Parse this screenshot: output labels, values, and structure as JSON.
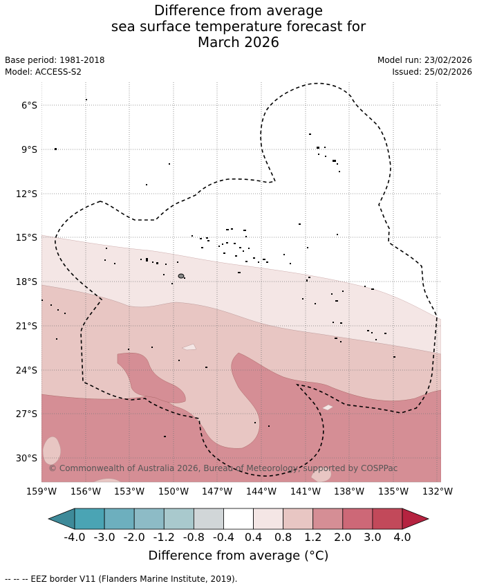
{
  "title": [
    "Difference from average",
    "sea surface temperature forecast for",
    "March 2026"
  ],
  "meta_left": [
    "Base period: 1981-2018",
    "Model: ACCESS-S2"
  ],
  "meta_right": [
    "Model run: 23/02/2026",
    "Issued: 25/02/2026"
  ],
  "copyright": "© Commonwealth of Australia 2026, Bureau of Meteorology, supported by COSPPac",
  "colorbar": {
    "title": "Difference from average (°C)",
    "tick_labels": [
      "-4.0",
      "-3.0",
      "-2.0",
      "-1.2",
      "-0.8",
      "-0.4",
      "0.4",
      "0.8",
      "1.2",
      "2.0",
      "3.0",
      "4.0"
    ],
    "colors": [
      "#3e8a99",
      "#4aa4b4",
      "#6dafbe",
      "#8dbbc6",
      "#a9c9cd",
      "#d1d6d8",
      "#ffffff",
      "#f4e6e5",
      "#e8c6c3",
      "#d58e95",
      "#cd6877",
      "#c2495a",
      "#b52340"
    ]
  },
  "footer": "--  --  -- EEZ border V11 (Flanders Marine Institute, 2019).",
  "axes": {
    "lat_labels": [
      "6°S",
      "9°S",
      "12°S",
      "15°S",
      "18°S",
      "21°S",
      "24°S",
      "27°S",
      "30°S"
    ],
    "lon_labels": [
      "159°W",
      "156°W",
      "153°W",
      "150°W",
      "147°W",
      "144°W",
      "141°W",
      "138°W",
      "135°W",
      "132°W"
    ]
  }
}
